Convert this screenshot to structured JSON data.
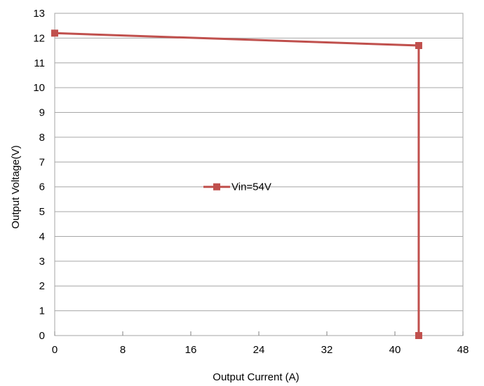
{
  "chart_data": {
    "type": "line",
    "xlabel": "Output Current (A)",
    "ylabel": "Output Voltage(V)",
    "xlim": [
      0,
      48
    ],
    "ylim": [
      0,
      13
    ],
    "x_ticks": [
      0,
      8,
      16,
      24,
      32,
      40,
      48
    ],
    "y_ticks": [
      0,
      1,
      2,
      3,
      4,
      5,
      6,
      7,
      8,
      9,
      10,
      11,
      12,
      13
    ],
    "grid": "horizontal",
    "legend": "center",
    "series": [
      {
        "name": "Vin=54V",
        "color": "#c0504d",
        "marker": "square",
        "points": [
          {
            "x": 0,
            "y": 12.2
          },
          {
            "x": 42.8,
            "y": 11.7
          },
          {
            "x": 42.8,
            "y": 0
          }
        ]
      }
    ]
  }
}
